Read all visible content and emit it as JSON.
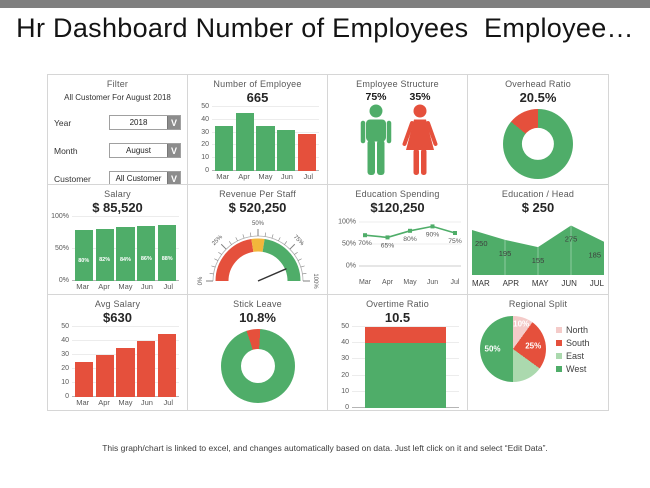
{
  "page": {
    "title": "Hr Dashboard Number of Employees  Employee…",
    "footer": "This graph/chart is linked to excel, and changes automatically based on data. Just left click on it and select “Edit Data”."
  },
  "colors": {
    "green": "#4fad69",
    "red": "#e5503c",
    "light_green": "#abd9ae",
    "pink": "#f4cbc9",
    "yellow": "#f2b63b",
    "title_gray": "#595959",
    "value_dark": "#262626",
    "panel_border": "#d6d6d6",
    "topbar_gray": "#7f7f7f"
  },
  "filter": {
    "title": "Filter",
    "subtitle": "All Customer For August 2018",
    "dropdown_glyph": "V",
    "fields": [
      {
        "label": "Year",
        "value": "2018"
      },
      {
        "label": "Month",
        "value": "August"
      },
      {
        "label": "Customer",
        "value": "All Customer"
      }
    ]
  },
  "chart_data": [
    {
      "id": "number_of_employee",
      "type": "bar",
      "title": "Number of Employee",
      "value_label": "665",
      "categories": [
        "Mar",
        "Apr",
        "May",
        "Jun",
        "Jul"
      ],
      "values": [
        35,
        45,
        35,
        32,
        29
      ],
      "bar_colors": [
        "green",
        "green",
        "green",
        "green",
        "red"
      ],
      "ylim": [
        0,
        50
      ],
      "ytick_values": [
        0,
        10,
        20,
        30,
        40,
        50
      ],
      "ytick_labels": [
        "0",
        "10",
        "20",
        "30",
        "40",
        "50"
      ]
    },
    {
      "id": "employee_structure",
      "type": "pictogram",
      "title": "Employee Structure",
      "items": [
        {
          "name": "male",
          "label": "75%",
          "color": "green"
        },
        {
          "name": "female",
          "label": "35%",
          "color": "red"
        }
      ]
    },
    {
      "id": "overhead_ratio",
      "type": "donut",
      "title": "Overhead Ratio",
      "value_label": "20.5%",
      "start_angle": 0,
      "size": 70,
      "hole": 0.46,
      "slices": [
        {
          "name": "remainder",
          "value": 86,
          "color": "green"
        },
        {
          "name": "overhead",
          "value": 14,
          "color": "red"
        }
      ]
    },
    {
      "id": "salary",
      "type": "bar",
      "title": "Salary",
      "value_label": "$ 85,520",
      "categories": [
        "Mar",
        "Apr",
        "May",
        "Jun",
        "Jul"
      ],
      "values": [
        80,
        82,
        84,
        86,
        88
      ],
      "bar_labels": [
        "80%",
        "82%",
        "84%",
        "86%",
        "88%"
      ],
      "bar_colors": [
        "green",
        "green",
        "green",
        "green",
        "green"
      ],
      "ylim": [
        0,
        100
      ],
      "ytick_values": [
        0,
        50,
        100
      ],
      "ytick_labels": [
        "0%",
        "50%",
        "100%"
      ]
    },
    {
      "id": "revenue_per_staff",
      "type": "gauge",
      "title": "Revenue  Per Staff",
      "value_label": "$ 520,250",
      "range": [
        0,
        100
      ],
      "needle_value": 87,
      "segments": [
        {
          "from": 0,
          "to": 45,
          "color": "red"
        },
        {
          "from": 45,
          "to": 55,
          "color": "yellow"
        },
        {
          "from": 55,
          "to": 100,
          "color": "green"
        }
      ],
      "tick_labels": [
        {
          "f": 0,
          "label": "0%"
        },
        {
          "f": 0.25,
          "label": "25%"
        },
        {
          "f": 0.5,
          "label": "50%"
        },
        {
          "f": 0.75,
          "label": "75%"
        },
        {
          "f": 1,
          "label": "100%"
        }
      ]
    },
    {
      "id": "education_spending",
      "type": "line",
      "title": "Education Spending",
      "value_label": "$120,250",
      "categories": [
        "Mar",
        "Apr",
        "May",
        "Jun",
        "Jul"
      ],
      "values": [
        70,
        65,
        80,
        90,
        75
      ],
      "point_labels": [
        "70%",
        "65%",
        "80%",
        "90%",
        "75%"
      ],
      "line_color": "green",
      "ylim": [
        0,
        100
      ],
      "ytick_values": [
        0,
        50,
        100
      ],
      "ytick_labels": [
        "0%",
        "50%",
        "100%"
      ]
    },
    {
      "id": "education_per_head",
      "type": "area",
      "title": "Education / Head",
      "value_label": "$ 250",
      "categories": [
        "MAR",
        "APR",
        "MAY",
        "JUN",
        "JUL"
      ],
      "values": [
        250,
        195,
        155,
        275,
        185
      ],
      "point_labels": [
        "250",
        "195",
        "155",
        "275",
        "185"
      ],
      "fill_color": "green",
      "ylim": [
        0,
        300
      ]
    },
    {
      "id": "avg_salary",
      "type": "bar",
      "title": "Avg Salary",
      "value_label": "$630",
      "categories": [
        "Mar",
        "Apr",
        "May",
        "Jun",
        "Jul"
      ],
      "values": [
        25,
        30,
        35,
        40,
        45
      ],
      "bar_colors": [
        "red",
        "red",
        "red",
        "red",
        "red"
      ],
      "ylim": [
        0,
        50
      ],
      "ytick_values": [
        0,
        10,
        20,
        30,
        40,
        50
      ],
      "ytick_labels": [
        "0",
        "10",
        "20",
        "30",
        "40",
        "50"
      ]
    },
    {
      "id": "stick_leave",
      "type": "donut",
      "title": "Stick Leave",
      "value_label": "10.8%",
      "start_angle": 342,
      "size": 74,
      "hole": 0.46,
      "slices": [
        {
          "name": "leave",
          "value": 6,
          "color": "red"
        },
        {
          "name": "remainder",
          "value": 94,
          "color": "green"
        }
      ]
    },
    {
      "id": "overtime_ratio",
      "type": "stacked_bar",
      "title": "Overtime  Ratio",
      "value_label": "10.5",
      "segments": [
        {
          "value": 40,
          "color": "green"
        },
        {
          "value": 10,
          "color": "red"
        }
      ],
      "ylim": [
        0,
        50
      ],
      "ytick_values": [
        0,
        10,
        20,
        30,
        40,
        50
      ],
      "ytick_labels": [
        "0",
        "10",
        "20",
        "30",
        "40",
        "50"
      ]
    },
    {
      "id": "regional_split",
      "type": "pie",
      "title": "Regional  Split",
      "size": 66,
      "legend_position": "right",
      "slices": [
        {
          "name": "North",
          "value": 10,
          "color": "pink",
          "label": "10%"
        },
        {
          "name": "South",
          "value": 25,
          "color": "red",
          "label": "25%"
        },
        {
          "name": "East",
          "value": 15,
          "color": "light_green",
          "label": ""
        },
        {
          "name": "West",
          "value": 50,
          "color": "green",
          "label": "50%"
        }
      ]
    }
  ]
}
